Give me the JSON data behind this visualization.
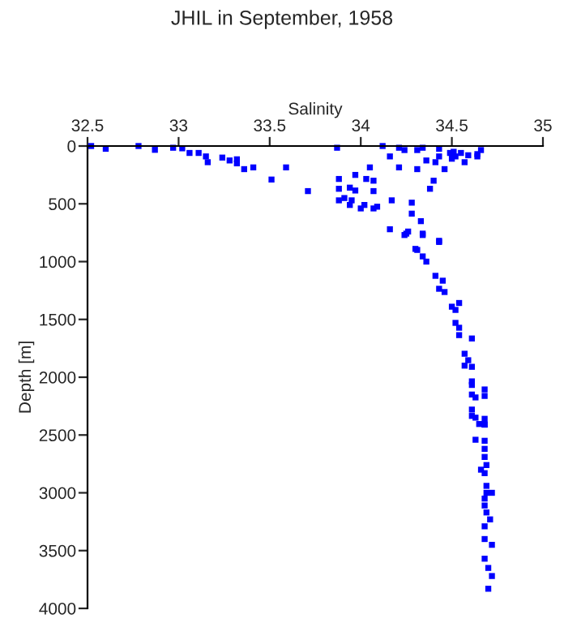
{
  "chart_data": {
    "type": "scatter",
    "title": "JHIL in September, 1958",
    "xlabel": "Salinity",
    "ylabel": "Depth [m]",
    "xlim": [
      32.5,
      35
    ],
    "xticks": [
      32.5,
      33,
      33.5,
      34,
      34.5,
      35
    ],
    "ylim": [
      4000,
      0
    ],
    "yticks": [
      0,
      500,
      1000,
      1500,
      2000,
      2500,
      3000,
      3500,
      4000
    ],
    "marker": "square",
    "grid": false,
    "legend": false,
    "series": [
      {
        "color": "#0000ff",
        "x": [
          32.52,
          32.6,
          32.78,
          32.87,
          32.97,
          33.02,
          33.06,
          33.11,
          33.15,
          33.16,
          33.24,
          33.28,
          33.32,
          33.32,
          33.36,
          33.41,
          33.51,
          33.59,
          33.71,
          33.87,
          33.88,
          33.88,
          33.88,
          33.91,
          33.95,
          33.94,
          33.97,
          33.97,
          34.0,
          33.94,
          34.02,
          34.03,
          34.05,
          34.07,
          34.07,
          34.07,
          34.09,
          34.12,
          34.16,
          34.17,
          34.16,
          34.21,
          34.21,
          34.24,
          34.24,
          34.26,
          34.28,
          34.28,
          34.31,
          34.31,
          34.33,
          34.34,
          34.3,
          34.34,
          34.36,
          34.38,
          34.4,
          34.41,
          34.43,
          34.43,
          34.43,
          34.46,
          34.49,
          34.5,
          34.51,
          34.52,
          34.55,
          34.57,
          34.59,
          34.64,
          34.64,
          34.66,
          34.25,
          34.34,
          34.31,
          34.34,
          34.36,
          34.43,
          34.41,
          34.45,
          34.43,
          34.46,
          34.54,
          34.5,
          34.52,
          34.52,
          34.54,
          34.54,
          34.61,
          34.57,
          34.59,
          34.57,
          34.61,
          34.61,
          34.61,
          34.68,
          34.63,
          34.61,
          34.65,
          34.68,
          34.61,
          34.68,
          34.61,
          34.63,
          34.68,
          34.68,
          34.63,
          34.68,
          34.68,
          34.68,
          34.69,
          34.66,
          34.68,
          34.69,
          34.69,
          34.72,
          34.68,
          34.68,
          34.69,
          34.71,
          34.68,
          34.68,
          34.72,
          34.68,
          34.7,
          34.72,
          34.7
        ],
        "values": [
          0,
          24,
          0,
          33,
          15,
          20,
          60,
          60,
          90,
          140,
          100,
          125,
          115,
          150,
          200,
          185,
          290,
          185,
          390,
          15,
          285,
          370,
          470,
          450,
          470,
          360,
          250,
          385,
          540,
          510,
          510,
          285,
          185,
          300,
          390,
          540,
          525,
          0,
          90,
          470,
          720,
          15,
          185,
          35,
          770,
          740,
          490,
          585,
          35,
          200,
          650,
          15,
          890,
          770,
          125,
          370,
          300,
          140,
          24,
          90,
          830,
          200,
          60,
          110,
          50,
          90,
          60,
          140,
          80,
          70,
          90,
          35,
          758,
          758,
          899,
          955,
          1000,
          820,
          1123,
          1165,
          1235,
          1263,
          1358,
          1390,
          1418,
          1530,
          1572,
          1636,
          1665,
          1797,
          1853,
          1900,
          1910,
          2067,
          2150,
          2162,
          2175,
          2335,
          2405,
          2410,
          2036,
          2106,
          2280,
          2350,
          2360,
          2410,
          2541,
          2550,
          2620,
          2690,
          2760,
          2800,
          2830,
          2940,
          3000,
          3000,
          3050,
          3110,
          3170,
          3230,
          3290,
          3400,
          3450,
          3570,
          3650,
          3720,
          3830
        ]
      }
    ]
  }
}
